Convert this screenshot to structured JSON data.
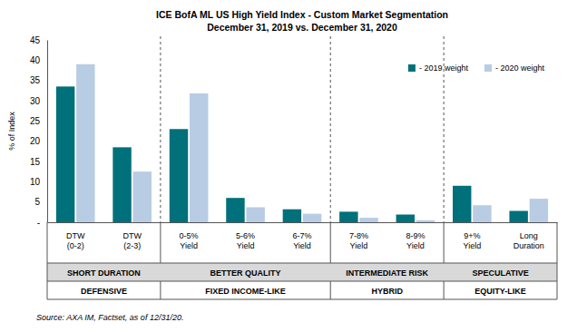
{
  "chart_data": {
    "type": "bar",
    "title": "ICE BofA ML US High Yield Index - Custom Market Segmentation",
    "subtitle": "December 31, 2019 vs. December 31, 2020",
    "y_label": "% of Index",
    "categories": [
      "DTW\n(0-2)",
      "DTW\n(2-3)",
      "0-5%\nYield",
      "5-6%\nYield",
      "6-7%\nYield",
      "7-8%\nYield",
      "8-9%\nYield",
      "9+%\nYield",
      "Long\nDuration"
    ],
    "series": [
      {
        "name": "- 2019 weight",
        "color": "#00707a",
        "values": [
          33.5,
          18.5,
          23,
          6,
          3.2,
          2.6,
          1.9,
          9,
          2.8
        ]
      },
      {
        "name": "- 2020 weight",
        "color": "#b8cce4",
        "values": [
          39,
          12.5,
          31.8,
          3.7,
          2.1,
          1.1,
          0.5,
          4.2,
          5.8
        ]
      }
    ],
    "ylim": [
      0,
      45
    ],
    "yticks": [
      {
        "value": 0,
        "label": "-"
      },
      5,
      10,
      15,
      20,
      25,
      30,
      35,
      40,
      45
    ],
    "grid": false,
    "legend": "upper right",
    "category_groups": [
      {
        "label": "SHORT DURATION",
        "count": 2
      },
      {
        "label": "BETTER QUALITY",
        "count": 3
      },
      {
        "label": "INTERMEDIATE RISK",
        "count": 2
      },
      {
        "label": "SPECULATIVE",
        "count": 2
      }
    ],
    "category_supergroups": [
      {
        "label": "DEFENSIVE",
        "count": 2
      },
      {
        "label": "FIXED INCOME-LIKE",
        "count": 3
      },
      {
        "label": "HYBRID",
        "count": 2
      },
      {
        "label": "EQUITY-LIKE",
        "count": 2
      }
    ],
    "annotations": [
      "Source: AXA IM, Factset, as of 12/31/20."
    ]
  }
}
